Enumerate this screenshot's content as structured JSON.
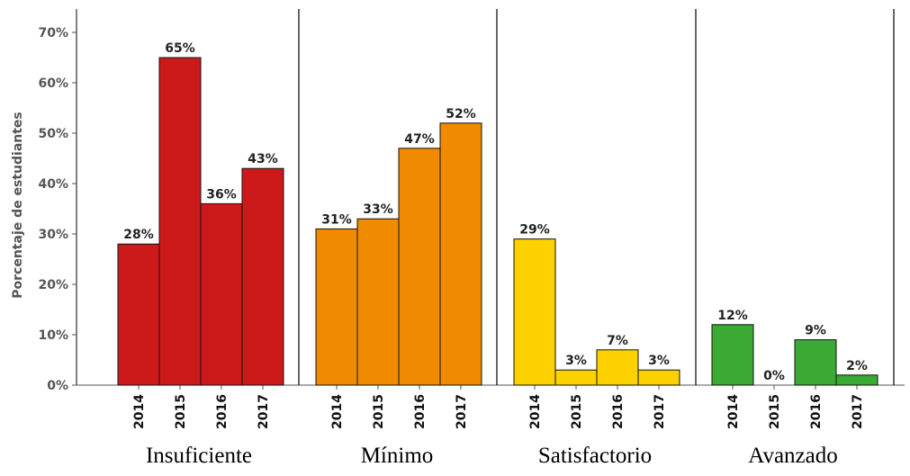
{
  "chart_data": {
    "type": "bar",
    "ylabel": "Porcentaje de estudiantes",
    "xlabel": "",
    "ylim": [
      0,
      75
    ],
    "yticks": [
      "0%",
      "10%",
      "20%",
      "30%",
      "40%",
      "50%",
      "60%",
      "70%"
    ],
    "ytick_values": [
      0,
      10,
      20,
      30,
      40,
      50,
      60,
      70
    ],
    "grid": false,
    "legend": "none",
    "years": [
      "2014",
      "2015",
      "2016",
      "2017"
    ],
    "groups": [
      {
        "name": "Insuficiente",
        "color": "#cc1a1a",
        "values": [
          28,
          65,
          36,
          43
        ],
        "labels": [
          "28%",
          "65%",
          "36%",
          "43%"
        ]
      },
      {
        "name": "Mínimo",
        "color": "#f08a00",
        "values": [
          31,
          33,
          47,
          52
        ],
        "labels": [
          "31%",
          "33%",
          "47%",
          "52%"
        ]
      },
      {
        "name": "Satisfactorio",
        "color": "#fdd000",
        "values": [
          29,
          3,
          7,
          3
        ],
        "labels": [
          "29%",
          "3%",
          "7%",
          "3%"
        ]
      },
      {
        "name": "Avanzado",
        "color": "#3aaa35",
        "values": [
          12,
          0,
          9,
          2
        ],
        "labels": [
          "12%",
          "0%",
          "9%",
          "2%"
        ]
      }
    ]
  }
}
